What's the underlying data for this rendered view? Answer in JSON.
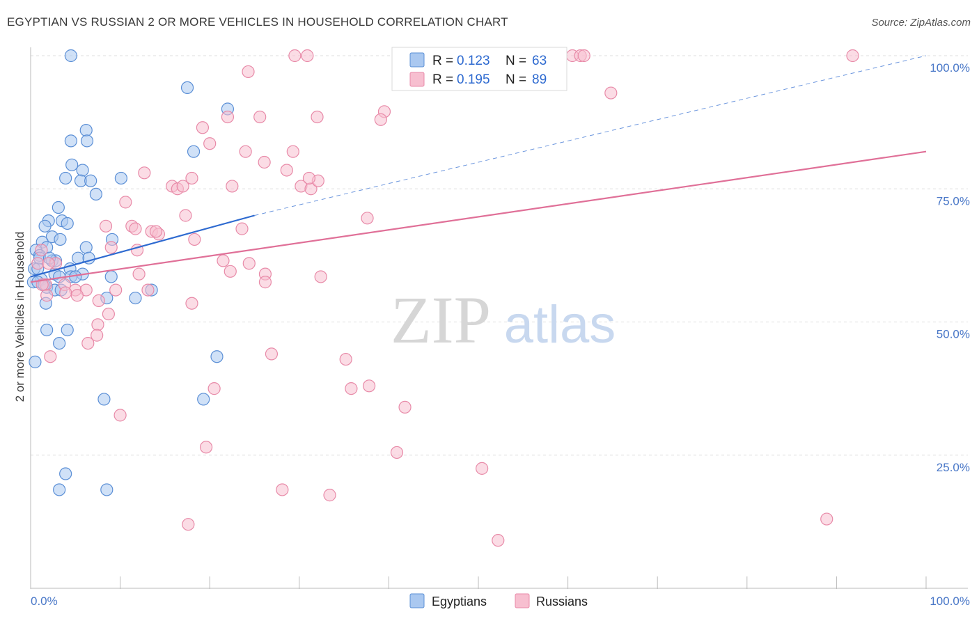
{
  "title": "EGYPTIAN VS RUSSIAN 2 OR MORE VEHICLES IN HOUSEHOLD CORRELATION CHART",
  "source": "Source: ZipAtlas.com",
  "watermark": {
    "zip": "ZIP",
    "atlas": "atlas"
  },
  "colors": {
    "egyptian_fill": "#aac8f0",
    "egyptian_stroke": "#5b8fd6",
    "egyptian_line": "#2e6ad0",
    "russian_fill": "#f7bfd0",
    "russian_stroke": "#e88aa8",
    "russian_line": "#e07098",
    "grid": "#dddddd",
    "axis_text": "#4a78c8"
  },
  "legend": {
    "r_label": "R =",
    "n_label": "N =",
    "egyptians": {
      "r": "0.123",
      "n": "63"
    },
    "russians": {
      "r": "0.195",
      "n": "89"
    }
  },
  "chart_data": {
    "type": "scatter",
    "xlabel": "",
    "ylabel": "2 or more Vehicles in Household",
    "xlim": [
      0,
      100
    ],
    "ylim": [
      0,
      100
    ],
    "x_tick_labels": [
      "0.0%",
      "100.0%"
    ],
    "y_tick_labels": [
      "25.0%",
      "50.0%",
      "75.0%",
      "100.0%"
    ],
    "y_ticks": [
      25,
      50,
      75,
      100
    ],
    "series": [
      {
        "name": "Egyptians",
        "r": 0.123,
        "n": 63,
        "trend": {
          "x0": 0,
          "y0": 58.5,
          "x1": 25,
          "y1": 70.0,
          "x_dash_end": 100,
          "y_dash_end": 100.0
        },
        "points": [
          [
            4.5,
            100
          ],
          [
            17.5,
            94
          ],
          [
            22,
            90
          ],
          [
            6.2,
            86
          ],
          [
            4.5,
            84
          ],
          [
            6.3,
            84
          ],
          [
            18.2,
            82
          ],
          [
            4.6,
            79.5
          ],
          [
            5.8,
            78.5
          ],
          [
            3.9,
            77
          ],
          [
            5.6,
            76.5
          ],
          [
            6.7,
            76.5
          ],
          [
            10.1,
            77
          ],
          [
            7.3,
            74
          ],
          [
            3.1,
            71.5
          ],
          [
            2.0,
            69
          ],
          [
            3.5,
            69
          ],
          [
            4.1,
            68.5
          ],
          [
            1.6,
            68
          ],
          [
            2.4,
            66
          ],
          [
            3.3,
            65.5
          ],
          [
            1.3,
            65
          ],
          [
            9.1,
            65.5
          ],
          [
            1.8,
            64
          ],
          [
            0.6,
            63.5
          ],
          [
            6.2,
            64
          ],
          [
            1.0,
            62.5
          ],
          [
            5.3,
            62
          ],
          [
            2.4,
            61.5
          ],
          [
            2.8,
            61.5
          ],
          [
            0.4,
            60
          ],
          [
            0.8,
            60
          ],
          [
            4.4,
            60
          ],
          [
            2.7,
            59
          ],
          [
            5.8,
            59
          ],
          [
            4.5,
            58.5
          ],
          [
            3.2,
            58.5
          ],
          [
            5.0,
            58.5
          ],
          [
            9.0,
            58.5
          ],
          [
            1.2,
            58
          ],
          [
            0.3,
            57.5
          ],
          [
            0.8,
            57.5
          ],
          [
            1.8,
            56.5
          ],
          [
            2.7,
            56
          ],
          [
            3.4,
            56
          ],
          [
            8.5,
            54.5
          ],
          [
            11.7,
            54.5
          ],
          [
            13.5,
            56
          ],
          [
            1.7,
            53.5
          ],
          [
            1.8,
            48.5
          ],
          [
            4.1,
            48.5
          ],
          [
            3.2,
            46
          ],
          [
            20.8,
            43.5
          ],
          [
            0.5,
            42.5
          ],
          [
            8.2,
            35.5
          ],
          [
            19.3,
            35.5
          ],
          [
            3.9,
            21.5
          ],
          [
            3.2,
            18.5
          ],
          [
            8.5,
            18.5
          ],
          [
            1.0,
            62
          ],
          [
            2.1,
            62
          ],
          [
            6.5,
            62
          ],
          [
            1.5,
            57
          ]
        ]
      },
      {
        "name": "Russians",
        "r": 0.195,
        "n": 89,
        "trend": {
          "x0": 0,
          "y0": 57.5,
          "x1": 100,
          "y1": 82.0
        },
        "points": [
          [
            29.5,
            100
          ],
          [
            30.9,
            100
          ],
          [
            46.7,
            100
          ],
          [
            47.5,
            100
          ],
          [
            50.5,
            100
          ],
          [
            51.2,
            100
          ],
          [
            60.5,
            100
          ],
          [
            61.4,
            100
          ],
          [
            61.8,
            100
          ],
          [
            91.8,
            100
          ],
          [
            24.3,
            97
          ],
          [
            64.8,
            93
          ],
          [
            22,
            88.5
          ],
          [
            25.6,
            88.5
          ],
          [
            32.0,
            88.5
          ],
          [
            39.5,
            89.5
          ],
          [
            39.1,
            88
          ],
          [
            19.2,
            86.5
          ],
          [
            20.0,
            83.5
          ],
          [
            24.0,
            82
          ],
          [
            29.3,
            82
          ],
          [
            26.1,
            80
          ],
          [
            28.6,
            78.5
          ],
          [
            12.7,
            78
          ],
          [
            15.8,
            75.5
          ],
          [
            16.4,
            75
          ],
          [
            17.0,
            75.5
          ],
          [
            18.0,
            77
          ],
          [
            22.5,
            75.5
          ],
          [
            30.2,
            75.5
          ],
          [
            31.3,
            75
          ],
          [
            32.1,
            76.5
          ],
          [
            31.1,
            77
          ],
          [
            10.6,
            72.5
          ],
          [
            17.3,
            70
          ],
          [
            37.6,
            69.5
          ],
          [
            8.4,
            68
          ],
          [
            11.3,
            68
          ],
          [
            11.7,
            67.5
          ],
          [
            13.5,
            67
          ],
          [
            23.6,
            67.5
          ],
          [
            14.3,
            66.5
          ],
          [
            14.0,
            67
          ],
          [
            18.3,
            65.5
          ],
          [
            9.0,
            64
          ],
          [
            11.9,
            63.5
          ],
          [
            2.8,
            61
          ],
          [
            21.5,
            61.5
          ],
          [
            0.8,
            61
          ],
          [
            2.0,
            61
          ],
          [
            24.4,
            61
          ],
          [
            22.3,
            59.5
          ],
          [
            12.1,
            59
          ],
          [
            26.2,
            59
          ],
          [
            32.4,
            58.5
          ],
          [
            26.2,
            57.5
          ],
          [
            1.7,
            57
          ],
          [
            3.8,
            57
          ],
          [
            1.3,
            57
          ],
          [
            5.0,
            56
          ],
          [
            6.2,
            56
          ],
          [
            9.5,
            56
          ],
          [
            13.1,
            56
          ],
          [
            3.9,
            55.5
          ],
          [
            5.2,
            55
          ],
          [
            1.8,
            55
          ],
          [
            7.6,
            54
          ],
          [
            18.0,
            53.5
          ],
          [
            8.7,
            51.5
          ],
          [
            7.5,
            49.5
          ],
          [
            7.4,
            47.5
          ],
          [
            6.4,
            46
          ],
          [
            2.2,
            43.5
          ],
          [
            26.9,
            44
          ],
          [
            35.2,
            43
          ],
          [
            20.5,
            37.5
          ],
          [
            35.8,
            37.5
          ],
          [
            37.8,
            38
          ],
          [
            41.8,
            34
          ],
          [
            10.0,
            32.5
          ],
          [
            19.6,
            26.5
          ],
          [
            40.9,
            25.5
          ],
          [
            50.4,
            22.5
          ],
          [
            28.1,
            18.5
          ],
          [
            33.4,
            17.5
          ],
          [
            88.9,
            13
          ],
          [
            17.6,
            12
          ],
          [
            52.2,
            9
          ],
          [
            1.2,
            63.5
          ]
        ]
      }
    ],
    "legend_position": "top-center",
    "bottom_legend": [
      "Egyptians",
      "Russians"
    ]
  }
}
